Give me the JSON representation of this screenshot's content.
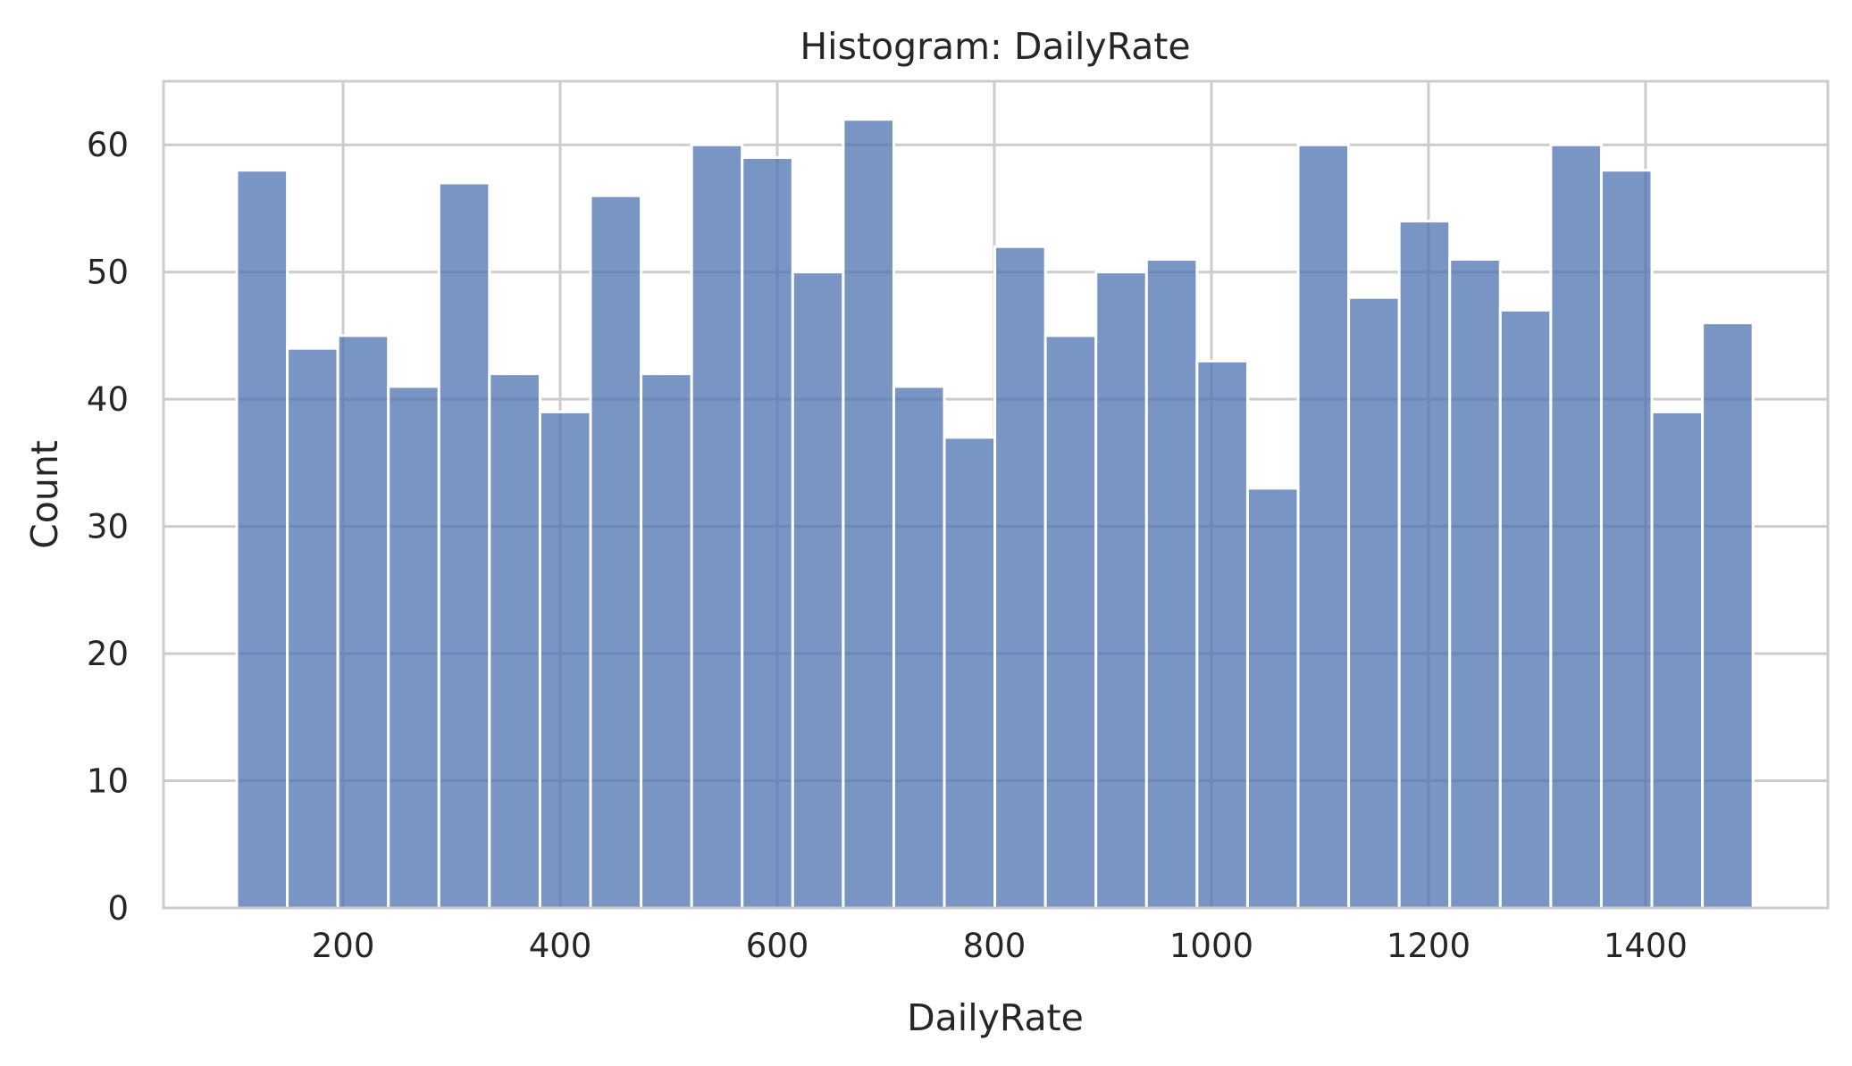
{
  "chart_data": {
    "type": "bar",
    "title": "Histogram: DailyRate",
    "xlabel": "DailyRate",
    "ylabel": "Count",
    "xlim": [
      34.5,
      1568
    ],
    "ylim": [
      0,
      65
    ],
    "xticks": [
      200,
      400,
      600,
      800,
      1000,
      1200,
      1400
    ],
    "yticks": [
      0,
      10,
      20,
      30,
      40,
      50,
      60
    ],
    "grid": true,
    "bin_start": 102,
    "bin_end": 1499,
    "bin_count": 30,
    "values": [
      58,
      44,
      45,
      41,
      57,
      42,
      39,
      56,
      42,
      60,
      59,
      50,
      62,
      41,
      37,
      52,
      45,
      50,
      51,
      43,
      33,
      60,
      48,
      54,
      51,
      47,
      60,
      58,
      39,
      46
    ],
    "colors": {
      "bar": "#4c72b0",
      "bar_opacity": 0.75,
      "bar_edge": "#ffffff",
      "grid": "#cccccc",
      "spine": "#cccccc",
      "text": "#262626"
    }
  }
}
